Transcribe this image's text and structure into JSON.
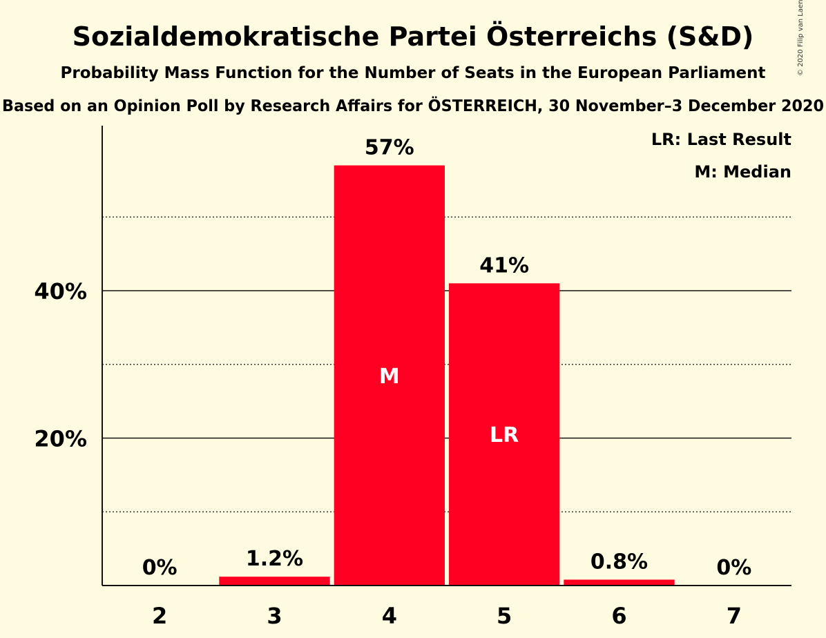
{
  "title": "Sozialdemokratische Partei Österreichs (S&D)",
  "subtitle": "Probability Mass Function for the Number of Seats in the European Parliament",
  "subtitle2": "Based on an Opinion Poll by Research Affairs for ÖSTERREICH, 30 November–3 December 2020",
  "copyright": "© 2020 Filip van Laenen",
  "legend": {
    "last_result": "LR: Last Result",
    "median": "M: Median"
  },
  "colors": {
    "background": "#FFFBE1",
    "bar": "#FF0022"
  },
  "chart_data": {
    "type": "bar",
    "categories": [
      "2",
      "3",
      "4",
      "5",
      "6",
      "7"
    ],
    "values": [
      0,
      1.2,
      57,
      41,
      0.8,
      0
    ],
    "data_labels": [
      "0%",
      "1.2%",
      "57%",
      "41%",
      "0.8%",
      "0%"
    ],
    "bar_markers": [
      "",
      "",
      "M",
      "LR",
      "",
      ""
    ],
    "ylim": [
      0,
      62
    ],
    "y_ticks": [
      20,
      40
    ],
    "y_tick_labels": [
      "20%",
      "40%"
    ],
    "minor_gridlines": [
      10,
      30,
      50
    ],
    "xlabel": "",
    "ylabel": "",
    "grid": true,
    "legend_position": "top-right"
  }
}
